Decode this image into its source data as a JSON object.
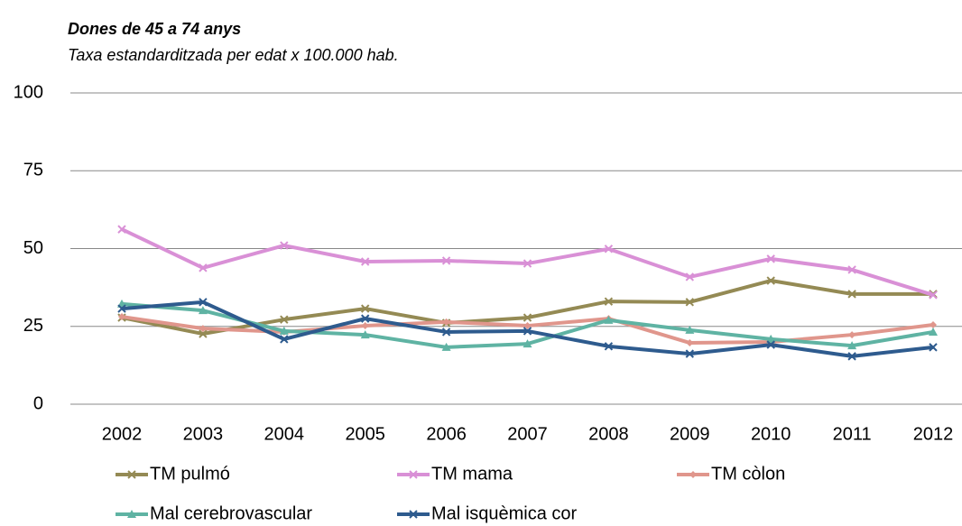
{
  "chart_data": {
    "type": "line",
    "title": "Dones de 45 a 74 anys",
    "subtitle": "Taxa estandarditzada per edat x 100.000 hab.",
    "categories": [
      "2002",
      "2003",
      "2004",
      "2005",
      "2006",
      "2007",
      "2008",
      "2009",
      "2010",
      "2011",
      "2012"
    ],
    "ylim": [
      0,
      100
    ],
    "yticks": [
      0,
      25,
      50,
      75,
      100
    ],
    "grid": true,
    "series": [
      {
        "name": "TM pulmó",
        "color": "#948a54",
        "marker": "x",
        "values": [
          27.8,
          22.6,
          27.2,
          30.7,
          26.1,
          27.8,
          33.0,
          32.8,
          39.7,
          35.4,
          35.4
        ]
      },
      {
        "name": "TM mama",
        "color": "#d990d6",
        "marker": "x",
        "values": [
          56.2,
          43.8,
          51.0,
          45.8,
          46.1,
          45.2,
          49.9,
          40.9,
          46.7,
          43.2,
          35.1
        ]
      },
      {
        "name": "TM còlon",
        "color": "#e0968c",
        "marker": "diamond",
        "values": [
          28.1,
          24.3,
          23.2,
          25.2,
          26.4,
          25.2,
          27.5,
          19.7,
          20.0,
          22.3,
          25.5
        ]
      },
      {
        "name": "Mal cerebrovascular",
        "color": "#5fb3a3",
        "marker": "triangle",
        "values": [
          32.2,
          30.1,
          23.5,
          22.3,
          18.3,
          19.4,
          27.0,
          23.8,
          20.9,
          18.8,
          23.2
        ]
      },
      {
        "name": "Mal isquèmica cor",
        "color": "#2e5b8e",
        "marker": "x",
        "values": [
          30.7,
          32.8,
          20.9,
          27.5,
          23.2,
          23.5,
          18.6,
          16.2,
          19.1,
          15.4,
          18.3
        ]
      }
    ]
  }
}
